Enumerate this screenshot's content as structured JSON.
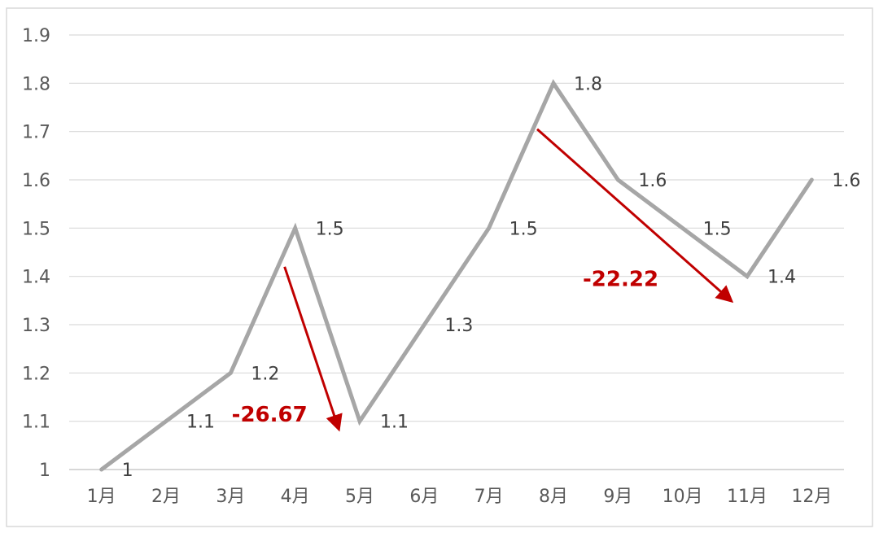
{
  "chart_data": {
    "type": "line",
    "title": "",
    "xlabel": "",
    "ylabel": "",
    "categories": [
      "1月",
      "2月",
      "3月",
      "4月",
      "5月",
      "6月",
      "7月",
      "8月",
      "9月",
      "10月",
      "11月",
      "12月"
    ],
    "series": [
      {
        "values": [
          1,
          1.1,
          1.2,
          1.5,
          1.1,
          1.3,
          1.5,
          1.8,
          1.6,
          1.5,
          1.4,
          1.6
        ]
      }
    ],
    "data_labels": [
      "1",
      "1.1",
      "1.2",
      "1.5",
      "1.1",
      "1.3",
      "1.5",
      "1.8",
      "1.6",
      "1.5",
      "1.4",
      "1.6"
    ],
    "ylim": [
      1,
      1.9
    ],
    "yticks": [
      "1",
      "1.1",
      "1.2",
      "1.3",
      "1.4",
      "1.5",
      "1.6",
      "1.7",
      "1.8",
      "1.9"
    ],
    "grid": true,
    "legend": "none",
    "line_color": "#A6A6A6",
    "annotations": [
      {
        "text": "-26.67",
        "from_category": "4月",
        "to_category": "5月",
        "color": "#C00000"
      },
      {
        "text": "-22.22",
        "from_category": "8月",
        "to_category": "11月",
        "color": "#C00000"
      }
    ]
  }
}
